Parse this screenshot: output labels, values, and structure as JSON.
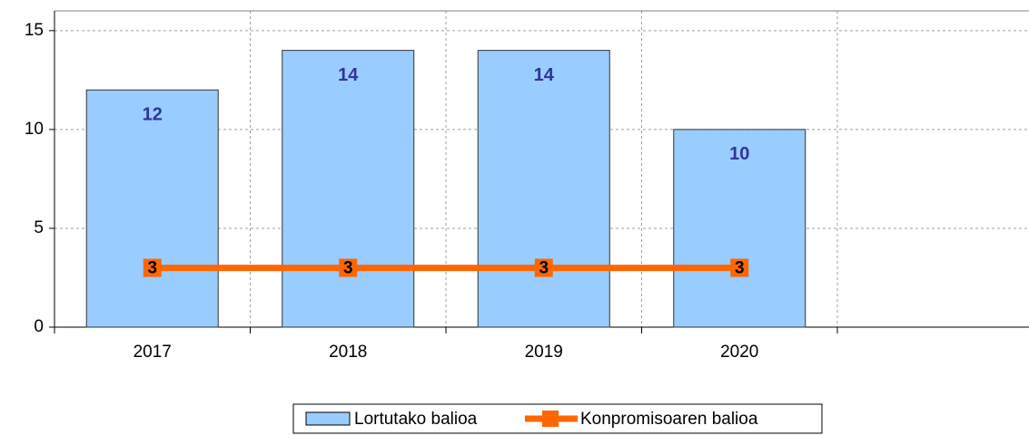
{
  "chart_data": {
    "type": "bar",
    "categories": [
      "2017",
      "2018",
      "2019",
      "2020",
      null
    ],
    "series": [
      {
        "name": "Lortutako balioa",
        "type": "bar",
        "color": "#99ccff",
        "values": [
          12,
          14,
          14,
          10,
          null
        ]
      },
      {
        "name": "Konpromisoaren balioa",
        "type": "line",
        "color": "#ff6600",
        "values": [
          3,
          3,
          3,
          3,
          null
        ]
      }
    ],
    "ylim": [
      0,
      16
    ],
    "yticks": [
      0,
      5,
      10,
      15
    ],
    "grid": true,
    "legend": "bottom"
  }
}
